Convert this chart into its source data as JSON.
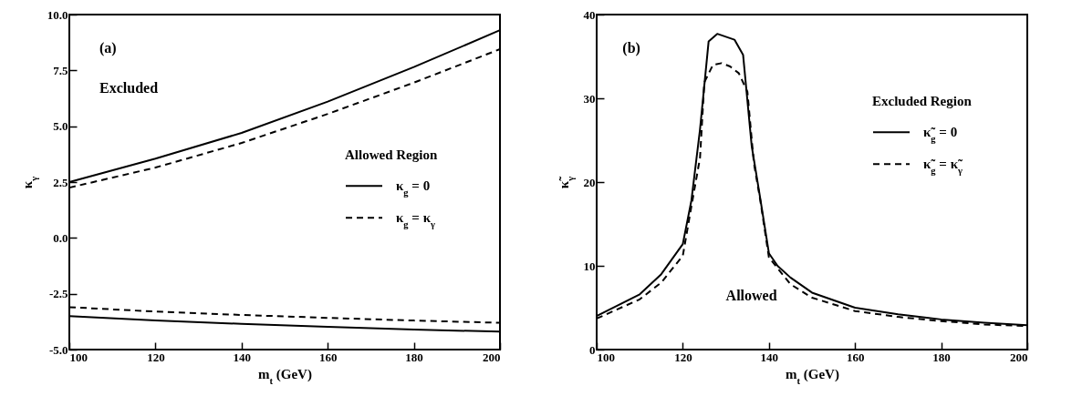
{
  "chart_data": [
    {
      "type": "line",
      "xlabel": "m$_{t}$ (GeV)",
      "ylabel": "κ$_{γ}$",
      "legend_title": "Allowed Region",
      "legend": "right",
      "grid": false,
      "xlim": [
        100,
        200
      ],
      "xticks": [
        100,
        120,
        140,
        160,
        180,
        200
      ],
      "ylim": [
        -5,
        10
      ],
      "yticks": [
        {
          "value": -5,
          "label": "-5.0"
        },
        {
          "value": -2.5,
          "label": "-2.5"
        },
        {
          "value": 0,
          "label": "0.0"
        },
        {
          "value": 2.5,
          "label": "2.5"
        },
        {
          "value": 5,
          "label": "5.0"
        },
        {
          "value": 7.5,
          "label": "7.5"
        },
        {
          "value": 10,
          "label": "10.0"
        }
      ],
      "annotations": [
        "(a)",
        "Excluded"
      ],
      "x": [
        100,
        120,
        140,
        160,
        180,
        200
      ],
      "series": [
        {
          "name": "κ$_{g}$ = 0",
          "color": "#000000",
          "line_style": "solid",
          "values": [
            2.5,
            3.55,
            4.7,
            6.1,
            7.65,
            9.3
          ]
        },
        {
          "color": "#000000",
          "line_style": "solid",
          "values": [
            -3.5,
            -3.7,
            -3.85,
            -3.98,
            -4.1,
            -4.2
          ]
        },
        {
          "name": "κ$_{g}$ = κ$_{γ}$",
          "color": "#000000",
          "line_style": "dashed",
          "values": [
            2.25,
            3.15,
            4.25,
            5.55,
            6.95,
            8.45
          ]
        },
        {
          "color": "#000000",
          "line_style": "dashed",
          "values": [
            -3.1,
            -3.3,
            -3.45,
            -3.58,
            -3.7,
            -3.8
          ]
        }
      ]
    },
    {
      "type": "line",
      "xlabel": "m$_{t}$ (GeV)",
      "ylabel": "κ̃$_{γ}$",
      "legend_title": "Excluded Region",
      "legend": "top right",
      "grid": false,
      "xlim": [
        100,
        200
      ],
      "xticks": [
        100,
        120,
        140,
        160,
        180,
        200
      ],
      "ylim": [
        0,
        40
      ],
      "yticks": [
        0,
        10,
        20,
        30,
        40
      ],
      "annotations": [
        "(b)",
        "Allowed"
      ],
      "series": [
        {
          "name": "κ̃$_{g}$ = 0",
          "color": "#000000",
          "line_style": "solid",
          "x": [
            100,
            110,
            115,
            120,
            122,
            124,
            126,
            128,
            132,
            134,
            136,
            138,
            140,
            142,
            145,
            150,
            160,
            170,
            180,
            190,
            200
          ],
          "values": [
            4.0,
            6.6,
            9.0,
            12.6,
            17.8,
            26.3,
            36.8,
            37.7,
            37.0,
            35.2,
            24.3,
            18.0,
            11.5,
            10.0,
            8.6,
            6.8,
            5.0,
            4.2,
            3.6,
            3.2,
            2.9
          ]
        },
        {
          "name": "κ̃$_{g}$ = κ̃$_{γ}$",
          "color": "#000000",
          "line_style": "dashed",
          "x": [
            100,
            110,
            115,
            120,
            122,
            124,
            125,
            127,
            129,
            131,
            133,
            135,
            136.5,
            138,
            140,
            145,
            150,
            160,
            170,
            180,
            190,
            200
          ],
          "values": [
            3.7,
            6.0,
            8.0,
            11.2,
            17.1,
            22.9,
            31.9,
            34.0,
            34.2,
            33.8,
            33.0,
            30.8,
            22.3,
            17.8,
            11.0,
            7.8,
            6.2,
            4.6,
            3.9,
            3.4,
            3.0,
            2.8
          ]
        }
      ]
    }
  ]
}
